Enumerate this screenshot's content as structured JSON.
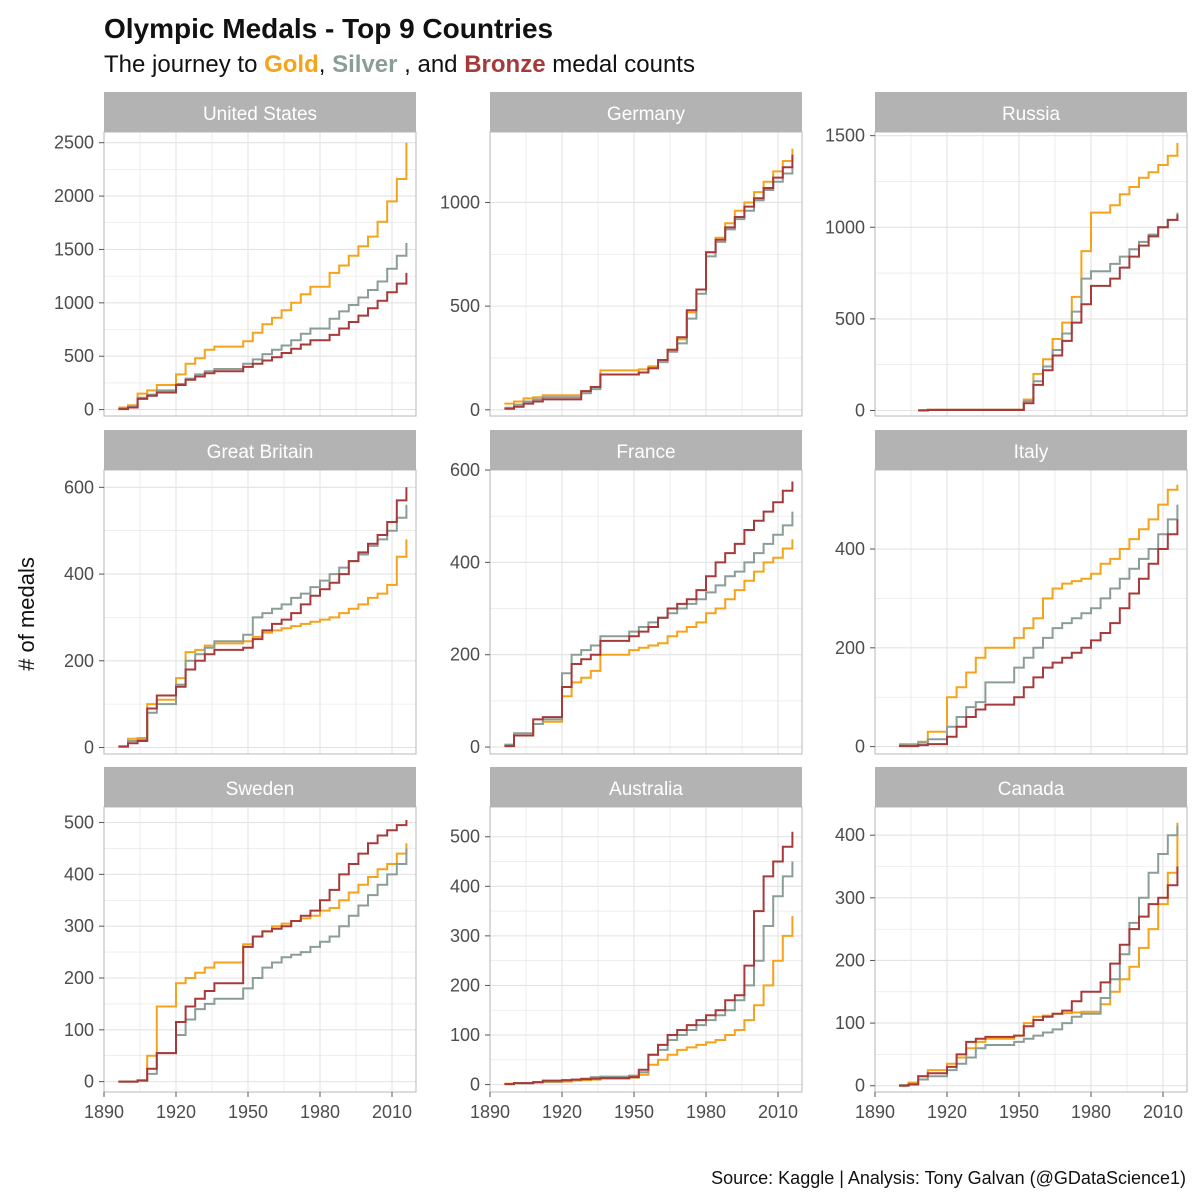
{
  "title": "Olympic  Medals  - Top 9 Countries",
  "subtitle": {
    "prefix": "The journey to ",
    "gold": "Gold",
    "sep1": ", ",
    "silver": "Silver",
    "sep2": " , and ",
    "bronze": "Bronze",
    "suffix": "  medal counts"
  },
  "ylabel": "# of medals",
  "caption": "Source: Kaggle  |  Analysis: Tony Galvan (@GDataScience1)",
  "colors": {
    "gold": "#F5A31A",
    "silver": "#8A9E96",
    "bronze": "#A63A3A",
    "strip": "#B3B3B3",
    "grid": "#E3E3E3",
    "border": "#B8B8B8"
  },
  "chart_data": {
    "type": "line",
    "step": true,
    "facets": "3x3",
    "x_ticks": [
      "1890",
      "1920",
      "1950",
      "1980",
      "2010"
    ],
    "xlim": [
      1890,
      2020
    ],
    "panels": [
      {
        "name": "United States",
        "ylim": [
          -60,
          2600
        ],
        "y_ticks": [
          0,
          500,
          1000,
          1500,
          2000,
          2500
        ],
        "y_tick_labels": [
          "0",
          "500",
          "1000",
          "1500",
          "2000",
          "2500"
        ],
        "x": [
          1896,
          1900,
          1904,
          1908,
          1912,
          1920,
          1924,
          1928,
          1932,
          1936,
          1948,
          1952,
          1956,
          1960,
          1964,
          1968,
          1972,
          1976,
          1984,
          1988,
          1992,
          1996,
          2000,
          2004,
          2008,
          2012,
          2016
        ],
        "gold": [
          20,
          40,
          150,
          180,
          230,
          330,
          430,
          480,
          560,
          590,
          640,
          720,
          800,
          860,
          930,
          1000,
          1080,
          1150,
          1280,
          1350,
          1440,
          1530,
          1620,
          1760,
          1950,
          2160,
          2500
        ],
        "silver": [
          10,
          25,
          110,
          140,
          180,
          240,
          290,
          330,
          360,
          380,
          430,
          470,
          520,
          560,
          600,
          650,
          710,
          760,
          850,
          920,
          980,
          1050,
          1120,
          1200,
          1320,
          1440,
          1560
        ],
        "bronze": [
          5,
          20,
          100,
          130,
          160,
          230,
          280,
          310,
          340,
          360,
          400,
          430,
          460,
          490,
          530,
          570,
          610,
          650,
          700,
          760,
          820,
          880,
          950,
          1020,
          1100,
          1180,
          1280
        ]
      },
      {
        "name": "Germany",
        "ylim": [
          -30,
          1340
        ],
        "y_ticks": [
          0,
          500,
          1000
        ],
        "y_tick_labels": [
          "0",
          "500",
          "1000"
        ],
        "x": [
          1896,
          1900,
          1904,
          1908,
          1912,
          1928,
          1932,
          1936,
          1952,
          1956,
          1960,
          1964,
          1968,
          1972,
          1976,
          1980,
          1984,
          1988,
          1992,
          1996,
          2000,
          2004,
          2008,
          2012,
          2016
        ],
        "gold": [
          30,
          40,
          55,
          60,
          70,
          90,
          110,
          190,
          195,
          210,
          240,
          290,
          340,
          470,
          580,
          760,
          830,
          900,
          960,
          1000,
          1050,
          1100,
          1150,
          1200,
          1260
        ],
        "silver": [
          10,
          25,
          40,
          50,
          60,
          80,
          100,
          170,
          180,
          200,
          230,
          280,
          320,
          440,
          560,
          740,
          810,
          870,
          920,
          960,
          1010,
          1060,
          1100,
          1140,
          1180
        ],
        "bronze": [
          5,
          15,
          30,
          40,
          50,
          90,
          110,
          170,
          180,
          200,
          240,
          290,
          350,
          480,
          580,
          760,
          820,
          880,
          930,
          980,
          1020,
          1070,
          1120,
          1170,
          1230
        ]
      },
      {
        "name": "Russia",
        "ylim": [
          -30,
          1520
        ],
        "y_ticks": [
          0,
          500,
          1000,
          1500
        ],
        "y_tick_labels": [
          "0",
          "500",
          "1000",
          "1500"
        ],
        "x": [
          1908,
          1912,
          1952,
          1956,
          1960,
          1964,
          1968,
          1972,
          1976,
          1980,
          1988,
          1992,
          1996,
          2000,
          2004,
          2008,
          2012,
          2016
        ],
        "gold": [
          1,
          5,
          60,
          200,
          280,
          390,
          480,
          620,
          870,
          1080,
          1120,
          1180,
          1220,
          1270,
          1300,
          1340,
          1390,
          1460
        ],
        "silver": [
          2,
          4,
          50,
          160,
          240,
          330,
          420,
          540,
          720,
          760,
          800,
          840,
          880,
          920,
          960,
          1000,
          1040,
          1080
        ],
        "bronze": [
          0,
          3,
          40,
          140,
          220,
          300,
          380,
          480,
          580,
          680,
          720,
          780,
          840,
          900,
          950,
          1000,
          1040,
          1070
        ]
      },
      {
        "name": "Great Britain",
        "ylim": [
          -15,
          640
        ],
        "y_ticks": [
          0,
          200,
          400,
          600
        ],
        "y_tick_labels": [
          "0",
          "200",
          "400",
          "600"
        ],
        "x": [
          1896,
          1900,
          1904,
          1908,
          1912,
          1920,
          1924,
          1928,
          1932,
          1936,
          1948,
          1952,
          1956,
          1960,
          1964,
          1968,
          1972,
          1976,
          1980,
          1984,
          1988,
          1992,
          1996,
          2000,
          2004,
          2008,
          2012,
          2016
        ],
        "gold": [
          2,
          20,
          22,
          100,
          110,
          160,
          220,
          225,
          235,
          240,
          245,
          255,
          265,
          270,
          275,
          280,
          285,
          290,
          295,
          300,
          310,
          320,
          330,
          345,
          355,
          375,
          440,
          480
        ],
        "silver": [
          3,
          15,
          18,
          80,
          100,
          145,
          200,
          215,
          230,
          245,
          260,
          300,
          310,
          320,
          330,
          345,
          355,
          370,
          385,
          400,
          415,
          430,
          445,
          465,
          480,
          500,
          530,
          560
        ],
        "bronze": [
          2,
          10,
          15,
          90,
          120,
          140,
          180,
          200,
          215,
          225,
          230,
          250,
          270,
          285,
          295,
          310,
          330,
          350,
          365,
          380,
          400,
          430,
          450,
          470,
          490,
          520,
          570,
          600
        ]
      },
      {
        "name": "France",
        "ylim": [
          -15,
          600
        ],
        "y_ticks": [
          0,
          200,
          400,
          600
        ],
        "y_tick_labels": [
          "0",
          "200",
          "400",
          "600"
        ],
        "x": [
          1896,
          1900,
          1908,
          1912,
          1920,
          1924,
          1928,
          1932,
          1936,
          1948,
          1952,
          1956,
          1960,
          1964,
          1968,
          1972,
          1976,
          1980,
          1984,
          1988,
          1992,
          1996,
          2000,
          2004,
          2008,
          2012,
          2016
        ],
        "gold": [
          5,
          25,
          50,
          55,
          110,
          140,
          150,
          165,
          200,
          210,
          215,
          220,
          225,
          240,
          250,
          260,
          270,
          290,
          300,
          320,
          340,
          360,
          380,
          400,
          410,
          430,
          450
        ],
        "silver": [
          5,
          30,
          50,
          60,
          160,
          200,
          210,
          220,
          240,
          250,
          260,
          270,
          280,
          290,
          300,
          310,
          320,
          335,
          350,
          370,
          380,
          400,
          420,
          440,
          460,
          480,
          510
        ],
        "bronze": [
          2,
          25,
          60,
          65,
          130,
          180,
          190,
          200,
          230,
          240,
          250,
          260,
          280,
          300,
          310,
          320,
          340,
          370,
          400,
          420,
          440,
          470,
          490,
          510,
          530,
          555,
          575
        ]
      },
      {
        "name": "Italy",
        "ylim": [
          -15,
          560
        ],
        "y_ticks": [
          0,
          200,
          400
        ],
        "y_tick_labels": [
          "0",
          "200",
          "400"
        ],
        "x": [
          1900,
          1908,
          1912,
          1920,
          1924,
          1928,
          1932,
          1936,
          1948,
          1952,
          1956,
          1960,
          1964,
          1968,
          1972,
          1976,
          1980,
          1984,
          1988,
          1992,
          1996,
          2000,
          2004,
          2008,
          2012,
          2016
        ],
        "gold": [
          5,
          10,
          30,
          100,
          120,
          150,
          180,
          200,
          220,
          240,
          260,
          300,
          320,
          330,
          335,
          340,
          350,
          370,
          380,
          400,
          420,
          440,
          460,
          490,
          520,
          530
        ],
        "silver": [
          3,
          8,
          15,
          40,
          60,
          80,
          90,
          130,
          160,
          180,
          200,
          220,
          240,
          250,
          260,
          270,
          280,
          300,
          320,
          340,
          360,
          380,
          400,
          430,
          460,
          490
        ],
        "bronze": [
          1,
          3,
          5,
          20,
          40,
          60,
          75,
          85,
          100,
          120,
          140,
          160,
          170,
          180,
          190,
          200,
          215,
          230,
          250,
          280,
          310,
          340,
          370,
          400,
          430,
          460
        ]
      },
      {
        "name": "Sweden",
        "ylim": [
          -20,
          530
        ],
        "y_ticks": [
          0,
          100,
          200,
          300,
          400,
          500
        ],
        "y_tick_labels": [
          "0",
          "100",
          "200",
          "300",
          "400",
          "500"
        ],
        "x": [
          1896,
          1904,
          1908,
          1912,
          1920,
          1924,
          1928,
          1932,
          1936,
          1948,
          1952,
          1956,
          1960,
          1964,
          1968,
          1972,
          1976,
          1980,
          1984,
          1988,
          1992,
          1996,
          2000,
          2004,
          2008,
          2012,
          2016
        ],
        "gold": [
          0,
          2,
          50,
          145,
          190,
          200,
          210,
          220,
          230,
          265,
          280,
          290,
          300,
          305,
          310,
          315,
          320,
          330,
          335,
          350,
          365,
          380,
          395,
          410,
          420,
          440,
          460
        ],
        "silver": [
          0,
          3,
          15,
          55,
          90,
          120,
          140,
          150,
          160,
          180,
          200,
          220,
          230,
          240,
          245,
          250,
          260,
          270,
          280,
          300,
          320,
          340,
          360,
          380,
          400,
          420,
          450
        ],
        "bronze": [
          0,
          2,
          25,
          55,
          115,
          145,
          160,
          175,
          190,
          260,
          280,
          290,
          295,
          300,
          310,
          320,
          330,
          350,
          370,
          400,
          420,
          440,
          460,
          475,
          485,
          495,
          505
        ]
      },
      {
        "name": "Australia",
        "ylim": [
          -15,
          560
        ],
        "y_ticks": [
          0,
          100,
          200,
          300,
          400,
          500
        ],
        "y_tick_labels": [
          "0",
          "100",
          "200",
          "300",
          "400",
          "500"
        ],
        "x": [
          1896,
          1900,
          1908,
          1912,
          1920,
          1924,
          1928,
          1932,
          1936,
          1948,
          1952,
          1956,
          1960,
          1964,
          1968,
          1972,
          1976,
          1980,
          1984,
          1988,
          1992,
          1996,
          2000,
          2004,
          2008,
          2012,
          2016
        ],
        "gold": [
          2,
          3,
          4,
          5,
          6,
          8,
          9,
          10,
          12,
          14,
          20,
          40,
          50,
          60,
          70,
          75,
          80,
          85,
          90,
          100,
          110,
          130,
          160,
          200,
          250,
          300,
          340
        ],
        "silver": [
          1,
          3,
          5,
          6,
          8,
          10,
          12,
          15,
          16,
          18,
          25,
          60,
          70,
          90,
          100,
          110,
          120,
          130,
          140,
          150,
          170,
          200,
          250,
          320,
          380,
          420,
          450
        ],
        "bronze": [
          1,
          3,
          5,
          8,
          9,
          10,
          11,
          12,
          13,
          15,
          30,
          60,
          80,
          100,
          110,
          120,
          130,
          140,
          150,
          170,
          180,
          240,
          350,
          420,
          450,
          480,
          510
        ]
      },
      {
        "name": "Canada",
        "ylim": [
          -10,
          445
        ],
        "y_ticks": [
          0,
          100,
          200,
          300,
          400
        ],
        "y_tick_labels": [
          "0",
          "100",
          "200",
          "300",
          "400"
        ],
        "x": [
          1900,
          1904,
          1908,
          1912,
          1920,
          1924,
          1928,
          1932,
          1936,
          1948,
          1952,
          1956,
          1960,
          1964,
          1968,
          1972,
          1976,
          1984,
          1988,
          1992,
          1996,
          2000,
          2004,
          2008,
          2012,
          2016
        ],
        "gold": [
          1,
          5,
          15,
          25,
          35,
          45,
          60,
          70,
          75,
          80,
          100,
          110,
          112,
          115,
          116,
          117,
          118,
          130,
          150,
          170,
          190,
          220,
          250,
          290,
          340,
          420
        ],
        "silver": [
          1,
          3,
          10,
          15,
          25,
          35,
          45,
          60,
          65,
          70,
          75,
          80,
          85,
          90,
          100,
          110,
          115,
          140,
          170,
          210,
          260,
          300,
          340,
          370,
          400,
          415
        ],
        "bronze": [
          0,
          2,
          15,
          20,
          30,
          50,
          70,
          75,
          78,
          80,
          95,
          105,
          110,
          115,
          120,
          135,
          150,
          165,
          195,
          225,
          250,
          270,
          290,
          300,
          320,
          350
        ]
      }
    ]
  }
}
